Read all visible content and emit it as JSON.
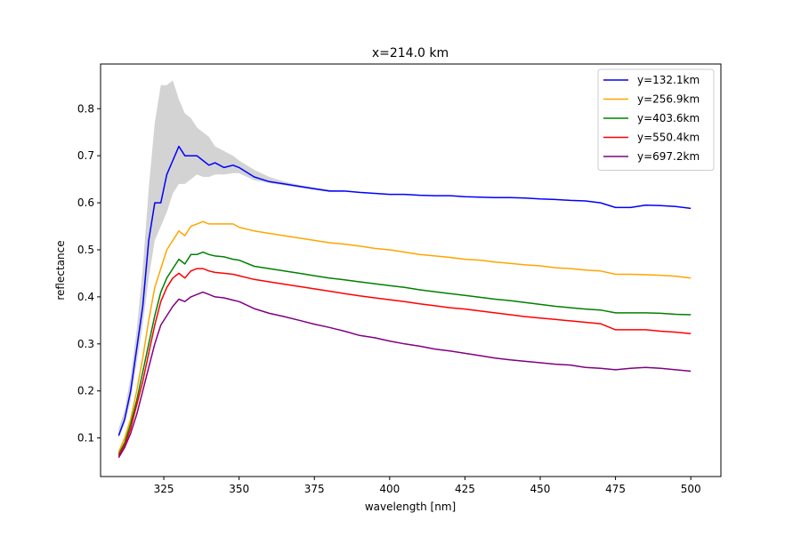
{
  "chart_data": {
    "type": "line",
    "title": "x=214.0 km",
    "xlabel": "wavelength [nm]",
    "ylabel": "reflectance",
    "xlim": [
      304,
      510
    ],
    "ylim": [
      0.018,
      0.895
    ],
    "xticks": [
      325,
      350,
      375,
      400,
      425,
      450,
      475,
      500
    ],
    "xtick_labels": [
      "325",
      "350",
      "375",
      "400",
      "425",
      "450",
      "475",
      "500"
    ],
    "yticks": [
      0.1,
      0.2,
      0.3,
      0.4,
      0.5,
      0.6,
      0.7,
      0.8
    ],
    "ytick_labels": [
      "0.1",
      "0.2",
      "0.3",
      "0.4",
      "0.5",
      "0.6",
      "0.7",
      "0.8"
    ],
    "grid": false,
    "legend_position": "top-right",
    "band_color": "#d3d3d3",
    "x": [
      310,
      312,
      314,
      316,
      318,
      320,
      322,
      324,
      326,
      328,
      330,
      332,
      334,
      336,
      338,
      340,
      342,
      345,
      348,
      350,
      355,
      360,
      365,
      370,
      375,
      380,
      385,
      390,
      395,
      400,
      405,
      410,
      415,
      420,
      425,
      430,
      435,
      440,
      445,
      450,
      455,
      460,
      465,
      470,
      475,
      480,
      485,
      490,
      495,
      500
    ],
    "series": [
      {
        "name": "y=132.1km",
        "color": "#0000ff",
        "values": [
          0.105,
          0.14,
          0.2,
          0.29,
          0.38,
          0.52,
          0.6,
          0.6,
          0.66,
          0.69,
          0.72,
          0.7,
          0.7,
          0.7,
          0.69,
          0.68,
          0.685,
          0.675,
          0.68,
          0.675,
          0.655,
          0.645,
          0.64,
          0.635,
          0.63,
          0.625,
          0.625,
          0.622,
          0.62,
          0.618,
          0.618,
          0.616,
          0.615,
          0.615,
          0.613,
          0.612,
          0.611,
          0.611,
          0.61,
          0.608,
          0.607,
          0.605,
          0.604,
          0.6,
          0.59,
          0.59,
          0.595,
          0.594,
          0.592,
          0.588
        ]
      },
      {
        "name": "y=256.9km",
        "color": "#ffa500",
        "values": [
          0.07,
          0.1,
          0.14,
          0.2,
          0.27,
          0.35,
          0.42,
          0.46,
          0.5,
          0.52,
          0.54,
          0.53,
          0.55,
          0.555,
          0.56,
          0.555,
          0.555,
          0.555,
          0.555,
          0.548,
          0.54,
          0.535,
          0.53,
          0.525,
          0.52,
          0.515,
          0.512,
          0.508,
          0.503,
          0.5,
          0.495,
          0.49,
          0.487,
          0.484,
          0.48,
          0.478,
          0.474,
          0.471,
          0.468,
          0.466,
          0.462,
          0.46,
          0.457,
          0.455,
          0.448,
          0.448,
          0.447,
          0.446,
          0.444,
          0.44
        ]
      },
      {
        "name": "y=403.6km",
        "color": "#008000",
        "values": [
          0.065,
          0.09,
          0.13,
          0.18,
          0.24,
          0.3,
          0.36,
          0.41,
          0.44,
          0.46,
          0.48,
          0.47,
          0.49,
          0.49,
          0.495,
          0.49,
          0.487,
          0.485,
          0.48,
          0.478,
          0.465,
          0.46,
          0.455,
          0.45,
          0.445,
          0.44,
          0.436,
          0.432,
          0.428,
          0.424,
          0.42,
          0.415,
          0.411,
          0.407,
          0.403,
          0.399,
          0.395,
          0.392,
          0.388,
          0.384,
          0.38,
          0.377,
          0.374,
          0.372,
          0.366,
          0.366,
          0.366,
          0.365,
          0.363,
          0.362
        ]
      },
      {
        "name": "y=550.4km",
        "color": "#ff0000",
        "values": [
          0.062,
          0.085,
          0.12,
          0.17,
          0.22,
          0.28,
          0.34,
          0.39,
          0.42,
          0.44,
          0.45,
          0.44,
          0.455,
          0.46,
          0.46,
          0.455,
          0.452,
          0.45,
          0.448,
          0.445,
          0.437,
          0.432,
          0.427,
          0.422,
          0.417,
          0.412,
          0.407,
          0.402,
          0.398,
          0.394,
          0.39,
          0.385,
          0.381,
          0.377,
          0.374,
          0.37,
          0.366,
          0.362,
          0.358,
          0.355,
          0.352,
          0.349,
          0.346,
          0.343,
          0.33,
          0.33,
          0.33,
          0.327,
          0.325,
          0.322
        ]
      },
      {
        "name": "y=697.2km",
        "color": "#800080",
        "values": [
          0.058,
          0.08,
          0.11,
          0.15,
          0.2,
          0.25,
          0.3,
          0.34,
          0.36,
          0.38,
          0.395,
          0.39,
          0.4,
          0.405,
          0.41,
          0.405,
          0.4,
          0.398,
          0.393,
          0.39,
          0.375,
          0.365,
          0.358,
          0.35,
          0.342,
          0.335,
          0.327,
          0.318,
          0.313,
          0.306,
          0.3,
          0.295,
          0.289,
          0.285,
          0.28,
          0.275,
          0.27,
          0.266,
          0.263,
          0.26,
          0.257,
          0.255,
          0.25,
          0.248,
          0.245,
          0.248,
          0.25,
          0.248,
          0.245,
          0.242
        ]
      }
    ],
    "band": {
      "x": [
        310,
        312,
        314,
        316,
        318,
        320,
        322,
        324,
        326,
        328,
        330,
        332,
        334,
        336,
        338,
        340,
        342,
        345,
        348,
        350,
        355,
        360,
        365,
        370,
        375,
        380,
        385
      ],
      "upper": [
        0.12,
        0.16,
        0.23,
        0.33,
        0.46,
        0.63,
        0.77,
        0.85,
        0.85,
        0.86,
        0.82,
        0.79,
        0.78,
        0.76,
        0.75,
        0.74,
        0.72,
        0.71,
        0.7,
        0.69,
        0.67,
        0.655,
        0.645,
        0.638,
        0.632,
        0.628,
        0.626
      ],
      "lower": [
        0.1,
        0.13,
        0.18,
        0.26,
        0.34,
        0.44,
        0.52,
        0.55,
        0.58,
        0.62,
        0.64,
        0.64,
        0.65,
        0.66,
        0.655,
        0.655,
        0.66,
        0.66,
        0.663,
        0.663,
        0.648,
        0.642,
        0.637,
        0.632,
        0.627,
        0.623,
        0.623
      ]
    }
  }
}
